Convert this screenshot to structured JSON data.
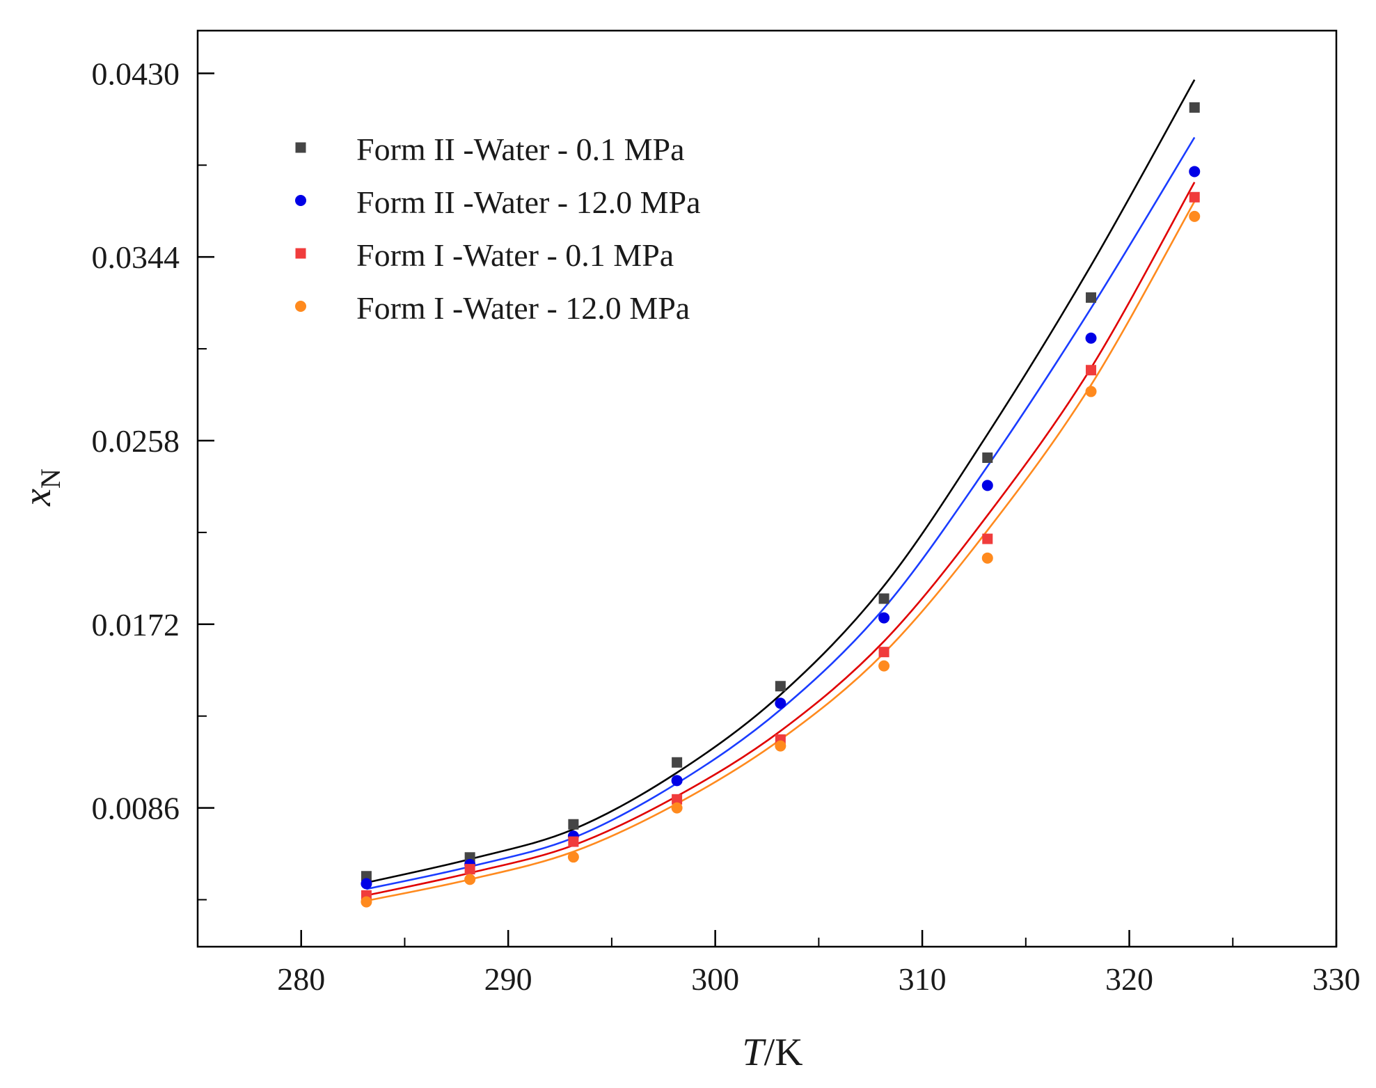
{
  "chart_data": {
    "type": "scatter",
    "xlabel": {
      "var": "T",
      "unit": "/K"
    },
    "ylabel": {
      "var": "x",
      "sub": "N"
    },
    "xlim": [
      275,
      330
    ],
    "ylim": [
      0.0021,
      0.045
    ],
    "x_ticks": [
      280,
      290,
      300,
      310,
      320,
      330
    ],
    "x_minor_ticks": [
      285,
      295,
      305,
      315,
      325
    ],
    "y_ticks": [
      "0.0086",
      "0.0172",
      "0.0258",
      "0.0344",
      "0.0430"
    ],
    "y_minor_ticks": [
      0.0043,
      0.0129,
      0.0215,
      0.0301,
      0.0387
    ],
    "legend_position": "top-left",
    "x": [
      283.15,
      288.15,
      293.15,
      298.15,
      303.15,
      308.15,
      313.15,
      318.15,
      323.15
    ],
    "series": [
      {
        "name": "Form II -Water - 0.1 MPa",
        "marker": "square",
        "color": "#454545",
        "line_color": "#000000",
        "values": [
          0.0054,
          0.00628,
          0.00783,
          0.01073,
          0.0143,
          0.0184,
          0.025,
          0.0325,
          0.0414
        ],
        "fit": [
          0.0051,
          0.0062,
          0.0076,
          0.01025,
          0.0139,
          0.019,
          0.0261,
          0.034,
          0.0427
        ]
      },
      {
        "name": "Form II -Water - 12.0 MPa",
        "marker": "circle",
        "color": "#0000e6",
        "line_color": "#1a3cff",
        "values": [
          0.00505,
          0.00595,
          0.00728,
          0.00988,
          0.0135,
          0.0175,
          0.0237,
          0.0306,
          0.0384
        ],
        "fit": [
          0.0048,
          0.00585,
          0.0072,
          0.00975,
          0.0132,
          0.01795,
          0.0246,
          0.032,
          0.04
        ]
      },
      {
        "name": "Form I -Water - 0.1 MPa",
        "marker": "square",
        "color": "#f03c3c",
        "line_color": "#e00000",
        "values": [
          0.0045,
          0.00573,
          0.00702,
          0.009,
          0.0118,
          0.0159,
          0.0212,
          0.0291,
          0.0372
        ],
        "fit": [
          0.0045,
          0.00555,
          0.00685,
          0.00915,
          0.0122,
          0.0164,
          0.0223,
          0.0292,
          0.0379
        ]
      },
      {
        "name": "Form I -Water - 12.0 MPa",
        "marker": "circle",
        "color": "#ff8a1e",
        "line_color": "#ff8a1e",
        "values": [
          0.0042,
          0.00525,
          0.0063,
          0.0086,
          0.0115,
          0.01525,
          0.0203,
          0.0281,
          0.0363
        ],
        "fit": [
          0.00425,
          0.00525,
          0.00655,
          0.0088,
          0.0118,
          0.01585,
          0.0216,
          0.0284,
          0.037
        ]
      }
    ]
  }
}
